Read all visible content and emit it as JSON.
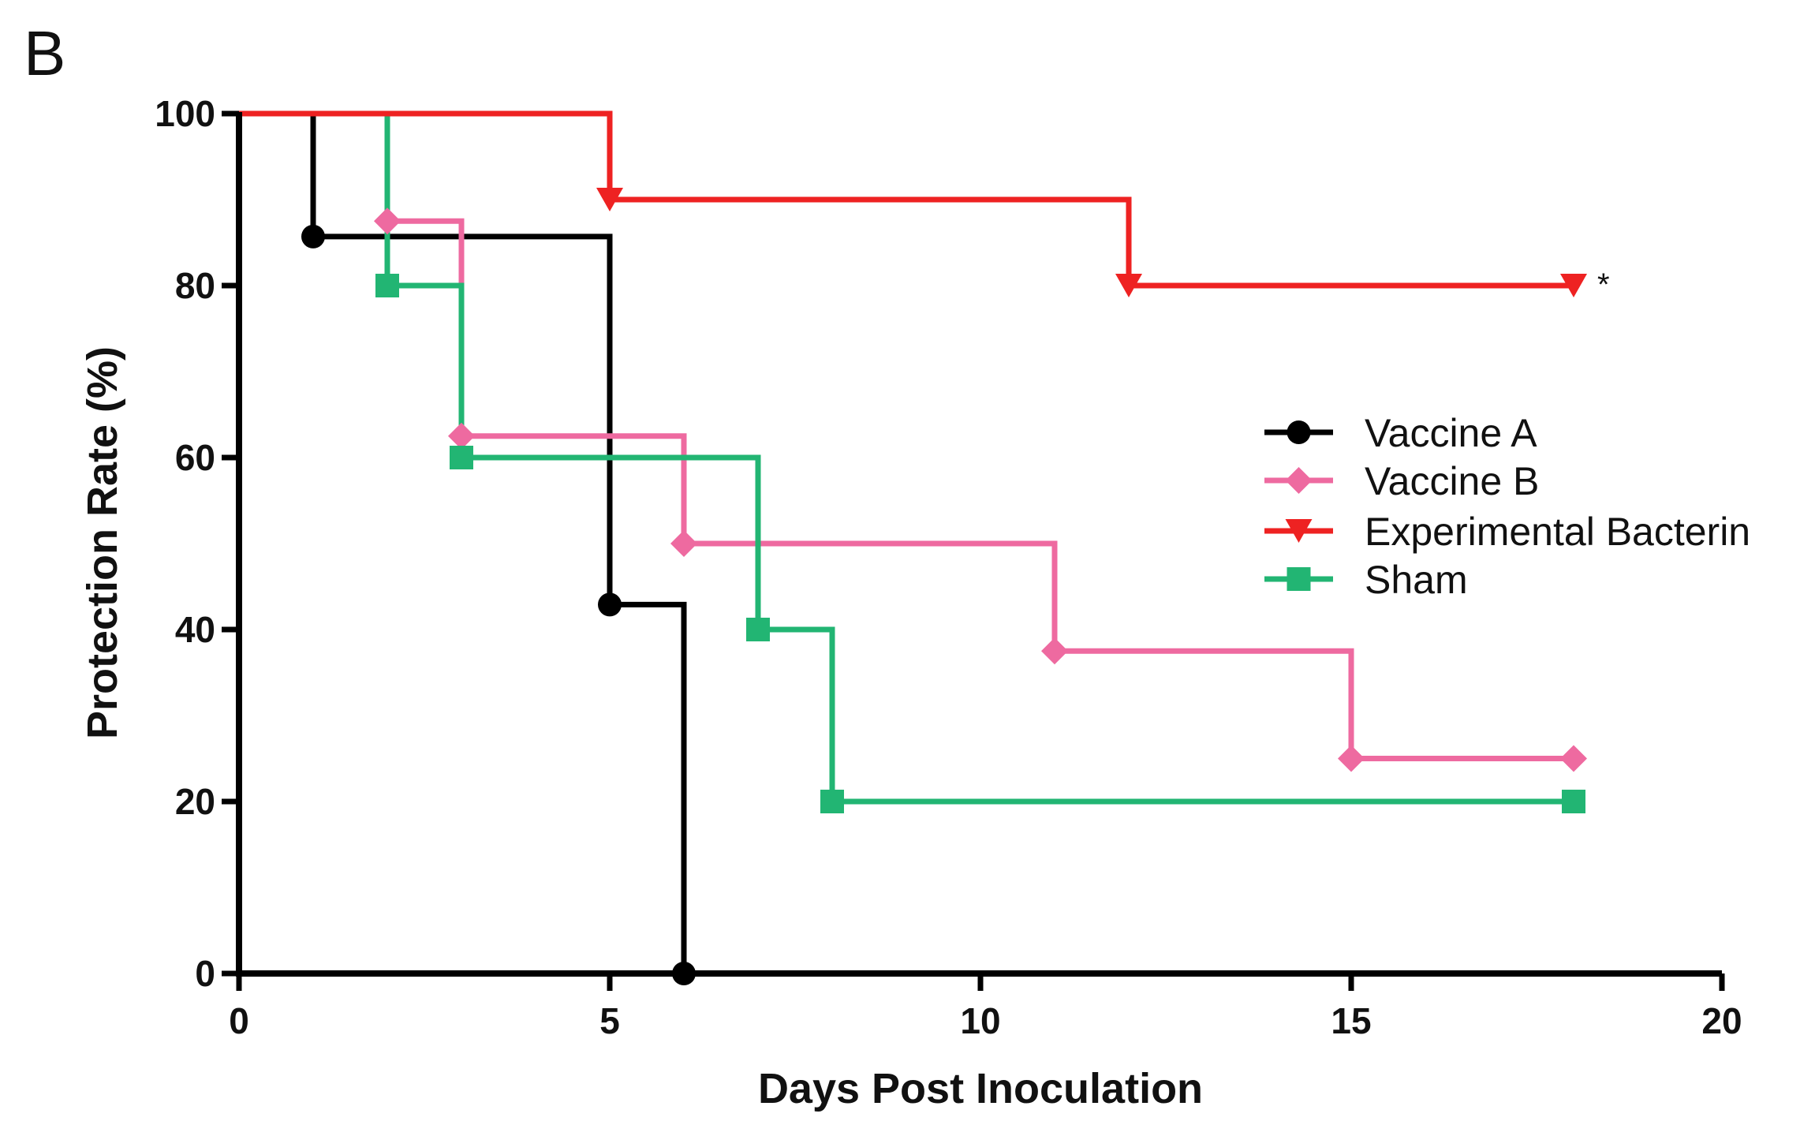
{
  "panel_label": "B",
  "chart_data": {
    "type": "line",
    "step": true,
    "title": "",
    "xlabel": "Days Post Inoculation",
    "ylabel": "Protection Rate (%)",
    "xlim": [
      0,
      20
    ],
    "ylim": [
      0,
      100
    ],
    "xticks": [
      0,
      5,
      10,
      15,
      20
    ],
    "yticks": [
      0,
      20,
      40,
      60,
      80,
      100
    ],
    "grid": false,
    "legend_position": "right",
    "series": [
      {
        "name": "Vaccine A",
        "color": "#000000",
        "marker": "circle",
        "points": [
          [
            0,
            100
          ],
          [
            1,
            85.7
          ],
          [
            5,
            42.9
          ],
          [
            6,
            0
          ]
        ],
        "markers": [
          [
            1,
            85.7
          ],
          [
            5,
            42.9
          ],
          [
            6,
            0
          ]
        ]
      },
      {
        "name": "Vaccine B",
        "color": "#ee6aa0",
        "marker": "diamond",
        "points": [
          [
            0,
            100
          ],
          [
            2,
            87.5
          ],
          [
            3,
            62.5
          ],
          [
            6,
            50
          ],
          [
            11,
            37.5
          ],
          [
            15,
            25
          ],
          [
            18,
            25
          ]
        ],
        "markers": [
          [
            2,
            87.5
          ],
          [
            3,
            62.5
          ],
          [
            6,
            50
          ],
          [
            11,
            37.5
          ],
          [
            15,
            25
          ],
          [
            18,
            25
          ]
        ]
      },
      {
        "name": "Experimental Bacterin",
        "color": "#ee2222",
        "marker": "triangle-down",
        "points": [
          [
            0,
            100
          ],
          [
            5,
            90
          ],
          [
            12,
            80
          ],
          [
            18,
            80
          ]
        ],
        "markers": [
          [
            5,
            90
          ],
          [
            12,
            80
          ],
          [
            18,
            80
          ]
        ]
      },
      {
        "name": "Sham",
        "color": "#22b573",
        "marker": "square",
        "points": [
          [
            0,
            100
          ],
          [
            2,
            80
          ],
          [
            3,
            60
          ],
          [
            7,
            40
          ],
          [
            8,
            20
          ],
          [
            18,
            20
          ]
        ],
        "markers": [
          [
            2,
            80
          ],
          [
            3,
            60
          ],
          [
            7,
            40
          ],
          [
            8,
            20
          ],
          [
            18,
            20
          ]
        ]
      }
    ],
    "annotations": [
      {
        "text": "*",
        "x": 18,
        "y": 80,
        "series": "Experimental Bacterin"
      }
    ]
  }
}
